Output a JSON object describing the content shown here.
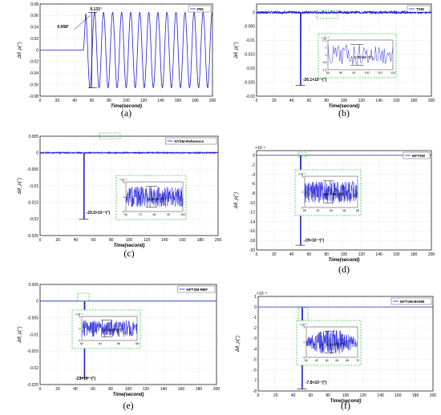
{
  "chart_data": [
    {
      "id": "a",
      "type": "line",
      "caption": "(a)",
      "xlabel": "Time(second)",
      "ylabel": "Δθ_p(°)",
      "xlim": [
        0,
        200
      ],
      "ylim": [
        -0.08,
        0.08
      ],
      "xticks": [
        "0",
        "20",
        "40",
        "60",
        "80",
        "100",
        "120",
        "140",
        "160",
        "180",
        "200"
      ],
      "yticks": [
        "-0.08",
        "-0.06",
        "-0.04",
        "-0.02",
        "0",
        "0.02",
        "0.04",
        "0.06",
        "0.08"
      ],
      "exponent": "",
      "legend": "PID",
      "grid": true,
      "signal": {
        "kind": "oscillation",
        "start": 50,
        "amplitude": 0.0655,
        "offset": 0.0,
        "period": 10.5,
        "rise": 3
      },
      "annotations": [
        {
          "text": "0.131°",
          "x": 58,
          "y": 0.069
        },
        {
          "text": "0.058°",
          "x": 20,
          "y": 0.038
        }
      ]
    },
    {
      "id": "b",
      "type": "line",
      "caption": "(b)",
      "xlabel": "Time(second)",
      "ylabel": "Δθ_p(°)",
      "xlim": [
        0,
        200
      ],
      "ylim": [
        -0.03,
        0.003
      ],
      "xticks": [
        "0",
        "20",
        "40",
        "60",
        "80",
        "100",
        "120",
        "140",
        "160",
        "180",
        "200"
      ],
      "yticks": [
        "-0.03",
        "-0.025",
        "-0.02",
        "-0.015",
        "-0.01",
        "-0.005",
        "0"
      ],
      "exponent": "",
      "legend": "TSM",
      "grid": true,
      "signal": {
        "kind": "spike-noise",
        "spike_t": 50,
        "spike_min": -0.0261,
        "noise": 0.0004
      },
      "annotations": [
        {
          "text": "-26.1×10⁻³(°)",
          "x": 53,
          "y": -0.0245
        }
      ],
      "inset": {
        "exponent": "×10⁻³",
        "yticks": [
          "-2.5",
          "-1",
          "0",
          "0.6",
          "1.6"
        ],
        "xticks": [
          "60",
          "80",
          "90",
          "100",
          "110",
          "120"
        ],
        "label": "1.75×10⁻³(°)"
      }
    },
    {
      "id": "c",
      "type": "line",
      "caption": "(c)",
      "xlabel": "Time(second)",
      "ylabel": "Δθ_p(°)",
      "xlim": [
        0,
        200
      ],
      "ylim": [
        -0.025,
        0.005
      ],
      "xticks": [
        "0",
        "20",
        "40",
        "60",
        "80",
        "100",
        "120",
        "140",
        "160",
        "180",
        "200"
      ],
      "yticks": [
        "-0.025",
        "-0.02",
        "-0.015",
        "-0.01",
        "-0.005",
        "0",
        "0.005"
      ],
      "exponent": "",
      "legend": "NTSM-Reference",
      "grid": true,
      "signal": {
        "kind": "spike-noise",
        "spike_t": 49,
        "spike_min": -0.02,
        "noise": 0.00015
      },
      "annotations": [
        {
          "text": "-20.0×10⁻³(°)",
          "x": 52,
          "y": -0.0185
        }
      ],
      "inset": {
        "exponent": "×10⁻⁴",
        "yticks": [
          "5",
          "0",
          "-5"
        ],
        "xticks": [
          "60",
          "70",
          "80",
          "90",
          "100"
        ],
        "label": "6.9×10⁻⁴(°)"
      }
    },
    {
      "id": "d",
      "type": "line",
      "caption": "(d)",
      "xlabel": "Time(second)",
      "ylabel": "Δθ_p(°)",
      "xlim": [
        0,
        200
      ],
      "ylim": [
        -20,
        1
      ],
      "xticks": [
        "0",
        "20",
        "40",
        "60",
        "80",
        "100",
        "120",
        "140",
        "160",
        "180",
        "200"
      ],
      "yticks": [
        "-20",
        "-18",
        "-16",
        "-14",
        "-12",
        "-10",
        "-8",
        "-6",
        "-4",
        "-2",
        "0"
      ],
      "exponent": "×10⁻³",
      "legend": "NFTSM",
      "grid": true,
      "signal": {
        "kind": "spike-noise",
        "spike_t": 50,
        "spike_min": -19,
        "noise": 0
      },
      "annotations": [
        {
          "text": "-19×10⁻³(°)",
          "x": 54,
          "y": -18.2
        }
      ],
      "inset": {
        "exponent": "×10⁻⁴",
        "yticks": [
          "5",
          "0",
          "-5"
        ],
        "xticks": [
          "60",
          "62",
          "64",
          "66",
          "68"
        ],
        "label": "6.7×10⁻⁴(°)"
      }
    },
    {
      "id": "e",
      "type": "line",
      "caption": "(e)",
      "xlabel": "Time(second)",
      "ylabel": "Δθ_p(°)",
      "xlim": [
        0,
        200
      ],
      "ylim": [
        -0.025,
        0.005
      ],
      "xticks": [
        "0",
        "20",
        "40",
        "60",
        "80",
        "100",
        "120",
        "140",
        "160",
        "180",
        "200"
      ],
      "yticks": [
        "-0.025",
        "-0.02",
        "-0.015",
        "-0.01",
        "-0.005",
        "0",
        "0.005"
      ],
      "exponent": "",
      "legend": "NFTSM-RBF",
      "grid": true,
      "signal": {
        "kind": "spike-noise",
        "spike_t": 50,
        "spike_min": -0.023,
        "noise": 0
      },
      "annotations": [
        {
          "text": "-23×10⁻³(°)",
          "x": 40,
          "y": -0.0235
        }
      ],
      "inset": {
        "exponent": "×10⁻⁴",
        "yticks": [
          "5",
          "0",
          "-5"
        ],
        "xticks": [
          "62",
          "64",
          "66",
          "68"
        ],
        "label": "7.3×10⁻⁴(°)"
      }
    },
    {
      "id": "f",
      "type": "line",
      "caption": "(f)",
      "xlabel": "Time(second)",
      "ylabel": "Δθ_p(°)",
      "xlim": [
        0,
        200
      ],
      "ylim": [
        -8,
        1
      ],
      "xticks": [
        "0",
        "20",
        "40",
        "60",
        "80",
        "100",
        "120",
        "140",
        "160",
        "180",
        "200"
      ],
      "yticks": [
        "-8",
        "-7",
        "-6",
        "-5",
        "-4",
        "-3",
        "-2",
        "-1",
        "0",
        "1"
      ],
      "exponent": "×10⁻³",
      "legend": "NFTSM-BSNN",
      "grid": true,
      "signal": {
        "kind": "spike-noise",
        "spike_t": 50,
        "spike_min": -7.8,
        "noise": 0
      },
      "annotations": [
        {
          "text": "-7.8×10⁻³(°)",
          "x": 54,
          "y": -7.3
        }
      ],
      "inset": {
        "exponent": "×10⁻⁴",
        "yticks": [
          "5",
          "0",
          "-5"
        ],
        "xticks": [
          "60",
          "62",
          "64",
          "66",
          "68",
          "70"
        ],
        "label": "1.1×10⁻⁴(°)"
      }
    }
  ],
  "colors": {
    "line": "#1f1fd6",
    "grid": "#d9d9d9",
    "axis": "#000000",
    "zoom_box": "#2ecc40",
    "annot": "#000000"
  }
}
